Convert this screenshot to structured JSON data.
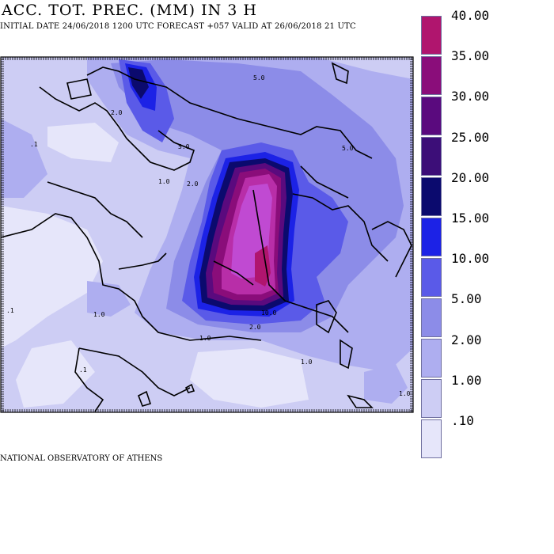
{
  "header": {
    "title": "ACC. TOT. PREC. (MM) IN 3 H",
    "subtitle": "INITIAL DATE 24/06/2018   1200 UTC  FORECAST +057 VALID AT  26/06/2018  21 UTC"
  },
  "legend": {
    "levels": [
      {
        "label": "40.00",
        "color": "#b0156e"
      },
      {
        "label": "35.00",
        "color": "#8a0d7a"
      },
      {
        "label": "30.00",
        "color": "#5a0a7e"
      },
      {
        "label": "25.00",
        "color": "#3c0e78"
      },
      {
        "label": "20.00",
        "color": "#0b0a6e"
      },
      {
        "label": "15.00",
        "color": "#1c22e6"
      },
      {
        "label": "10.00",
        "color": "#5a5ae8"
      },
      {
        "label": "5.00",
        "color": "#8c8ce8"
      },
      {
        "label": "2.00",
        "color": "#aeaef0"
      },
      {
        "label": "1.00",
        "color": "#cdcdf4"
      },
      {
        "label": ".10",
        "color": "#e6e6fa"
      }
    ]
  },
  "map": {
    "contour_labels": [
      "5.0",
      "2.0",
      "1.0",
      "10.0",
      ".1"
    ]
  },
  "footer": {
    "credit": "NATIONAL OBSERVATORY OF ATHENS"
  }
}
